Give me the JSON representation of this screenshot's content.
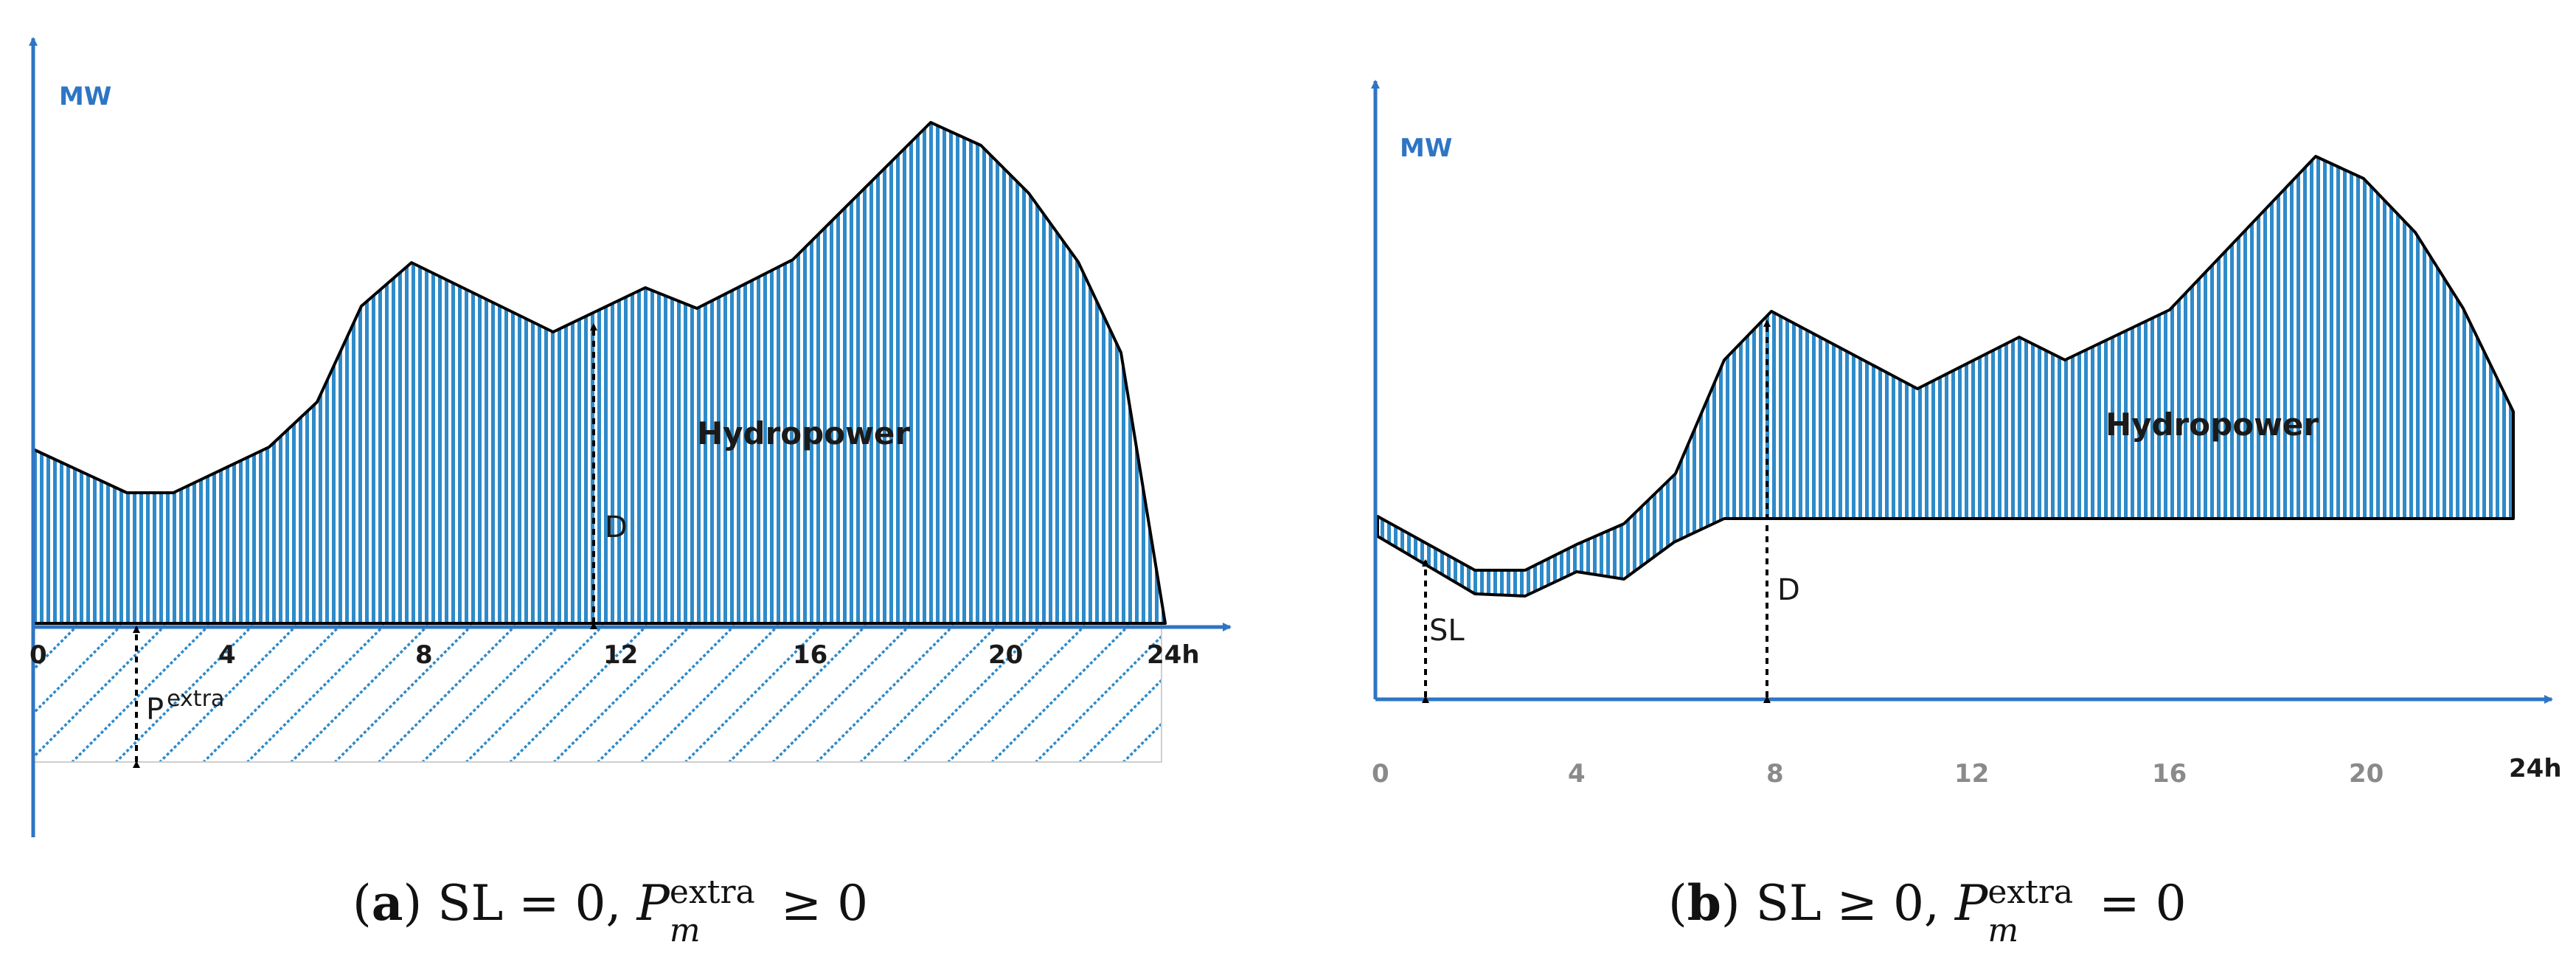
{
  "colors": {
    "axis": "#2e75c4",
    "hatch": "#2e8ac9",
    "outline": "#000000",
    "tick_dark": "#1a1a1a",
    "tick_gray": "#8a8a8a"
  },
  "panel_a": {
    "y_axis_label": "MW",
    "x_ticks": [
      "0",
      "4",
      "8",
      "12",
      "16",
      "20",
      "24h"
    ],
    "region_label": "Hydropower",
    "dim_label_d": "D",
    "dim_label_p": "P",
    "dim_label_p_sup": "extra",
    "caption": {
      "letter": "a",
      "open": "(",
      "close": ")",
      "text": " SL = 0, ",
      "math_base": "P",
      "math_sup": "extra",
      "math_sub": "m",
      "math_rel": " ≥ 0"
    }
  },
  "panel_b": {
    "y_axis_label": "MW",
    "x_ticks": [
      "0",
      "4",
      "8",
      "12",
      "16",
      "20",
      "24h"
    ],
    "region_label": "Hydropower",
    "dim_label_d": "D",
    "dim_label_sl": "SL",
    "caption": {
      "letter": "b",
      "open": "(",
      "close": ")",
      "text": " SL ≥ 0, ",
      "math_base": "P",
      "math_sup": "extra",
      "math_sub": "m",
      "math_rel": " = 0"
    }
  }
}
